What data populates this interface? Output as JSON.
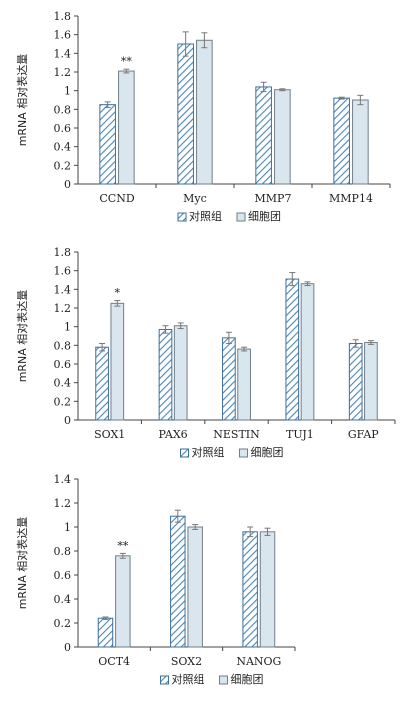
{
  "chart_data": [
    {
      "type": "bar",
      "ylabel": "mRNA 相对表达量",
      "ylim": [
        0,
        1.8
      ],
      "yticks": [
        "0",
        "0.2",
        "0.4",
        "0.6",
        "0.8",
        "1",
        "1.2",
        "1.4",
        "1.6",
        "1.8"
      ],
      "ytick_values": [
        0,
        0.2,
        0.4,
        0.6,
        0.8,
        1,
        1.2,
        1.4,
        1.6,
        1.8
      ],
      "categories": [
        "CCND",
        "Myc",
        "MMP7",
        "MMP14"
      ],
      "series": [
        {
          "name": "对照组",
          "values": [
            0.85,
            1.5,
            1.04,
            0.92
          ],
          "errors": [
            0.03,
            0.13,
            0.05,
            0.01
          ]
        },
        {
          "name": "细胞团",
          "values": [
            1.21,
            1.54,
            1.01,
            0.9
          ],
          "errors": [
            0.02,
            0.08,
            0.01,
            0.05
          ]
        }
      ],
      "annotations": [
        {
          "category": 0,
          "series": 1,
          "text": "**"
        }
      ],
      "legend": "bottom",
      "grid": false
    },
    {
      "type": "bar",
      "ylabel": "mRNA 相对表达量",
      "ylim": [
        0,
        1.8
      ],
      "yticks": [
        "0",
        "0.2",
        "0.4",
        "0.6",
        "0.8",
        "1",
        "1.2",
        "1.4",
        "1.6",
        "1.8"
      ],
      "ytick_values": [
        0,
        0.2,
        0.4,
        0.6,
        0.8,
        1,
        1.2,
        1.4,
        1.6,
        1.8
      ],
      "categories": [
        "SOX1",
        "PAX6",
        "NESTIN",
        "TUJ1",
        "GFAP"
      ],
      "series": [
        {
          "name": "对照组",
          "values": [
            0.78,
            0.97,
            0.88,
            1.51,
            0.82
          ],
          "errors": [
            0.04,
            0.04,
            0.06,
            0.07,
            0.04
          ]
        },
        {
          "name": "细胞团",
          "values": [
            1.25,
            1.01,
            0.76,
            1.46,
            0.83
          ],
          "errors": [
            0.03,
            0.03,
            0.02,
            0.02,
            0.02
          ]
        }
      ],
      "annotations": [
        {
          "category": 0,
          "series": 1,
          "text": "*"
        }
      ],
      "legend": "bottom",
      "grid": false
    },
    {
      "type": "bar",
      "ylabel": "mRNA 相对表达量",
      "ylim": [
        0,
        1.4
      ],
      "yticks": [
        "0",
        "0.2",
        "0.4",
        "0.6",
        "0.8",
        "1",
        "1.2",
        "1.4"
      ],
      "ytick_values": [
        0,
        0.2,
        0.4,
        0.6,
        0.8,
        1,
        1.2,
        1.4
      ],
      "categories": [
        "OCT4",
        "SOX2",
        "NANOG"
      ],
      "series": [
        {
          "name": "对照组",
          "values": [
            0.24,
            1.09,
            0.96
          ],
          "errors": [
            0.01,
            0.05,
            0.04
          ]
        },
        {
          "name": "细胞团",
          "values": [
            0.76,
            1.0,
            0.96
          ],
          "errors": [
            0.02,
            0.02,
            0.03
          ]
        }
      ],
      "annotations": [
        {
          "category": 0,
          "series": 1,
          "text": "**"
        }
      ],
      "legend": "bottom",
      "grid": false
    }
  ],
  "colors": {
    "control_stroke": "#3d6f9b",
    "control_hatch": "#4a86b8",
    "cluster_fill": "#d9e6ee",
    "cluster_stroke": "#6f7f8a",
    "axis": "#444444",
    "error": "#777777"
  }
}
